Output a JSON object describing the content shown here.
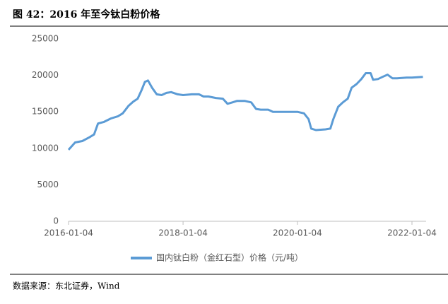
{
  "chart_data": {
    "type": "line",
    "title": "图 42：2016 年至今钛白粉价格",
    "source": "数据来源：东北证券，Wind",
    "x": [
      "2016-01-04",
      "2016-02-15",
      "2016-04-01",
      "2016-05-15",
      "2016-06-15",
      "2016-07-10",
      "2016-08-15",
      "2016-10-01",
      "2016-11-15",
      "2016-12-15",
      "2017-01-20",
      "2017-02-20",
      "2017-03-20",
      "2017-04-15",
      "2017-05-05",
      "2017-05-25",
      "2017-06-20",
      "2017-07-20",
      "2017-08-20",
      "2017-09-20",
      "2017-10-20",
      "2017-12-01",
      "2018-01-04",
      "2018-03-01",
      "2018-04-15",
      "2018-05-15",
      "2018-06-15",
      "2018-08-01",
      "2018-09-15",
      "2018-10-15",
      "2018-11-15",
      "2018-12-15",
      "2019-02-01",
      "2019-03-15",
      "2019-04-15",
      "2019-05-15",
      "2019-07-01",
      "2019-08-01",
      "2019-10-01",
      "2020-01-04",
      "2020-02-15",
      "2020-03-15",
      "2020-04-01",
      "2020-05-01",
      "2020-07-01",
      "2020-08-01",
      "2020-08-20",
      "2020-09-20",
      "2020-10-20",
      "2020-11-20",
      "2020-12-15",
      "2021-01-15",
      "2021-02-15",
      "2021-03-15",
      "2021-04-15",
      "2021-05-01",
      "2021-06-01",
      "2021-07-01",
      "2021-08-01",
      "2021-09-01",
      "2021-10-01",
      "2021-12-01",
      "2022-01-04",
      "2022-03-15"
    ],
    "series": [
      {
        "name": "国内钛白粉（金红石型）价格（元/吨）",
        "color": "#5b9bd5",
        "values": [
          9800,
          10800,
          11000,
          11500,
          11900,
          13400,
          13600,
          14100,
          14400,
          14800,
          15800,
          16400,
          16800,
          18000,
          19100,
          19300,
          18300,
          17400,
          17300,
          17600,
          17700,
          17400,
          17300,
          17400,
          17400,
          17100,
          17100,
          16900,
          16800,
          16100,
          16300,
          16500,
          16500,
          16300,
          15400,
          15300,
          15300,
          15000,
          15000,
          15000,
          14800,
          14000,
          12700,
          12500,
          12600,
          12700,
          14000,
          15700,
          16300,
          16800,
          18300,
          18800,
          19500,
          20300,
          20300,
          19400,
          19500,
          19800,
          20100,
          19600,
          19600,
          19700,
          19700,
          19800
        ]
      }
    ],
    "xlim": [
      "2016-01-04",
      "2022-04-04"
    ],
    "xticks": [
      "2016-01-04",
      "2018-01-04",
      "2020-01-04",
      "2022-01-04"
    ],
    "ylim": [
      0,
      25000
    ],
    "yticks": [
      0,
      5000,
      10000,
      15000,
      20000,
      25000
    ],
    "grid": false,
    "legend": "bottom"
  }
}
